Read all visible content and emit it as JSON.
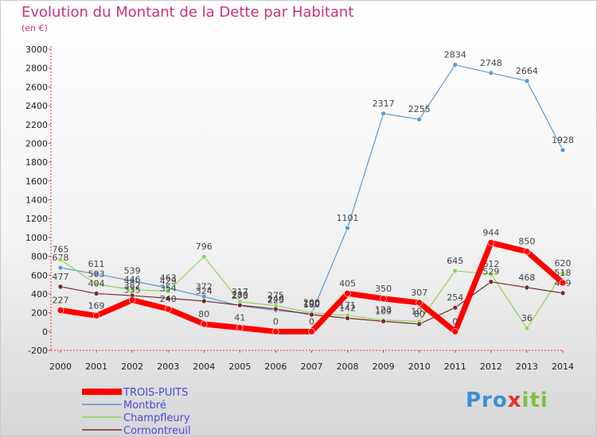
{
  "title": "Evolution du Montant de la Dette par Habitant",
  "subtitle": "(en €)",
  "logo": {
    "p": "Pro",
    "x": "x",
    "i": "iti"
  },
  "chart_data": {
    "type": "line",
    "title": "Evolution du Montant de la Dette par Habitant",
    "ylabel": "(en €)",
    "xlabel": "",
    "categories": [
      "2000",
      "2001",
      "2002",
      "2003",
      "2004",
      "2005",
      "2006",
      "2007",
      "2008",
      "2009",
      "2010",
      "2011",
      "2012",
      "2013",
      "2014"
    ],
    "ylim": [
      -200,
      3000
    ],
    "yticks": [
      "-200",
      "0",
      "200",
      "400",
      "600",
      "800",
      "1000",
      "1200",
      "1400",
      "1600",
      "1800",
      "2000",
      "2200",
      "2400",
      "2600",
      "2800",
      "3000"
    ],
    "grid": false,
    "legend_position": "bottom-left",
    "series": [
      {
        "name": "Montbré",
        "color": "#5b9bd5",
        "width": 1.2,
        "values": [
          678,
          611,
          539,
          463,
          372,
          273,
          225,
          190,
          1101,
          2317,
          2255,
          2834,
          2748,
          2664,
          1928
        ]
      },
      {
        "name": "Champfleury",
        "color": "#8ed65c",
        "width": 1.2,
        "values": [
          765,
          503,
          446,
          429,
          796,
          317,
          275,
          200,
          171,
          123,
          107,
          645,
          612,
          36,
          620
        ]
      },
      {
        "name": "Cormontreuil",
        "color": "#7a2a2a",
        "width": 1.2,
        "values": [
          477,
          404,
          382,
          354,
          324,
          280,
          240,
          180,
          142,
          109,
          80,
          254,
          529,
          468,
          409
        ]
      },
      {
        "name": "TROIS-PUITS",
        "color": "#ff0000",
        "width": 7,
        "values": [
          227,
          169,
          335,
          240,
          80,
          41,
          0,
          0,
          405,
          350,
          307,
          0,
          944,
          850,
          518
        ]
      }
    ]
  }
}
